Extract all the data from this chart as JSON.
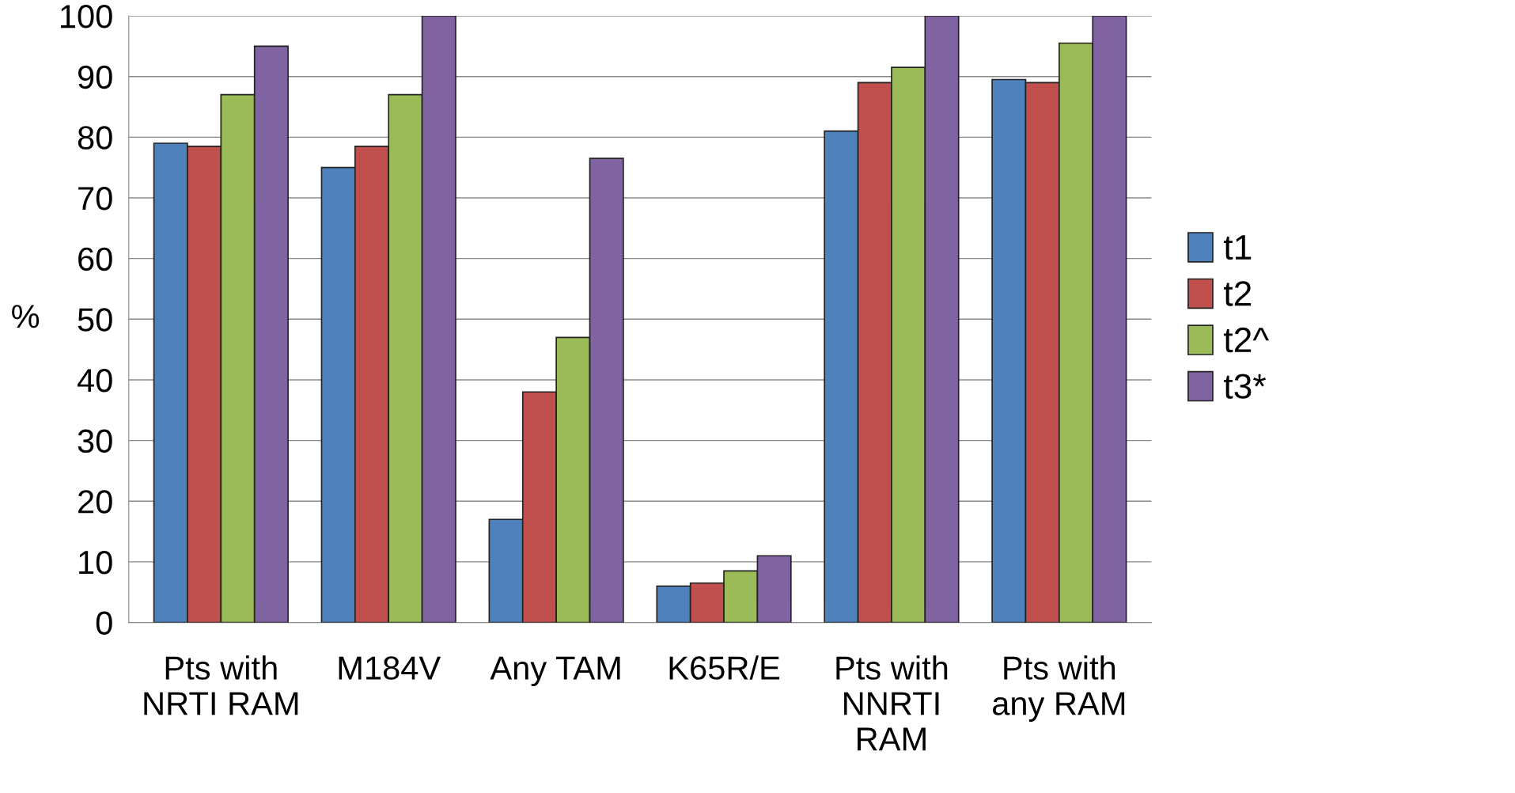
{
  "chart_data": {
    "type": "bar",
    "ylabel": "%",
    "categories": [
      "Pts with\nNRTI RAM",
      "M184V",
      "Any TAM",
      "K65R/E",
      "Pts with\nNNRTI\nRAM",
      "Pts with\nany RAM"
    ],
    "series": [
      {
        "name": "t1",
        "color": "#4f81bd",
        "values": [
          79,
          75,
          17,
          6,
          81,
          89.5
        ]
      },
      {
        "name": "t2",
        "color": "#c0504d",
        "values": [
          78.5,
          78.5,
          38,
          6.5,
          89,
          89
        ]
      },
      {
        "name": "t2^",
        "color": "#9bbb59",
        "values": [
          87,
          87,
          47,
          8.5,
          91.5,
          95.5
        ]
      },
      {
        "name": "t3*",
        "color": "#8064a2",
        "values": [
          95,
          100,
          76.5,
          11,
          100,
          100
        ]
      }
    ],
    "ylim": [
      0,
      100
    ],
    "yticks": [
      0,
      10,
      20,
      30,
      40,
      50,
      60,
      70,
      80,
      90,
      100
    ],
    "grid": "y",
    "legend": "right"
  }
}
